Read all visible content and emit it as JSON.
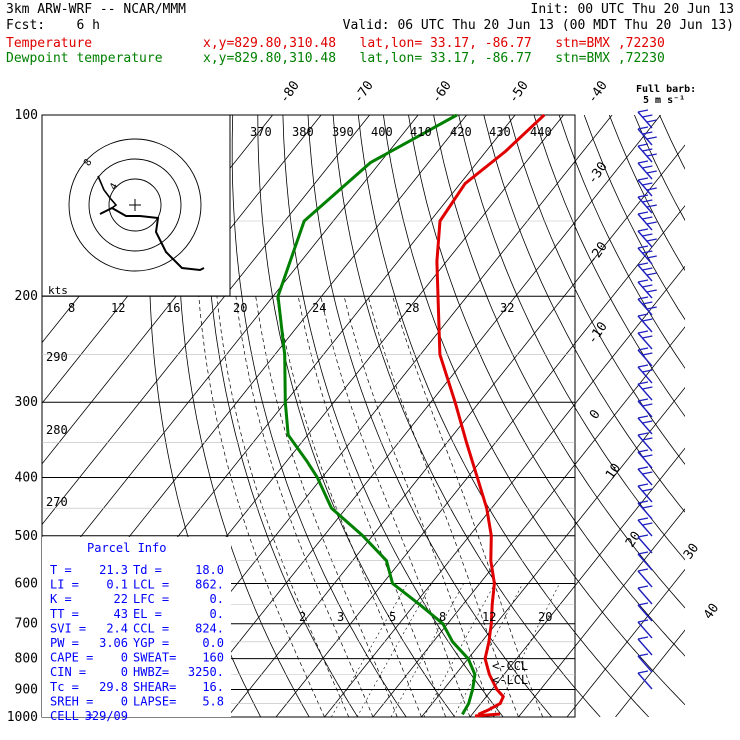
{
  "header": {
    "line1_left": "3km ARW-WRF -- NCAR/MMM",
    "line1_right": "Init: 00 UTC Thu 20 Jun 13",
    "line2_left": "Fcst:    6 h",
    "line2_right": "Valid: 06 UTC Thu 20 Jun 13 (00 MDT Thu 20 Jun 13)",
    "temp_label": "Temperature",
    "temp_info": "x,y=829.80,310.48   lat,lon= 33.17, -86.77   stn=BMX ,72230",
    "dew_label": "Dewpoint temperature",
    "dew_info": "x,y=829.80,310.48   lat,lon= 33.17, -86.77   stn=BMX ,72230",
    "full_barb": "Full barb:",
    "full_barb_units": "5 m s⁻¹"
  },
  "colors": {
    "temperature": "#e00000",
    "dewpoint": "#008000",
    "parcel_text": "#0000ff",
    "barbs": "#2020c0"
  },
  "chart_data": {
    "type": "skew-t",
    "pressure_axis_hPa": [
      100,
      200,
      300,
      400,
      500,
      600,
      700,
      800,
      900,
      1000
    ],
    "pressure_range_hPa": [
      1000,
      100
    ],
    "isotherm_labels_C": [
      -80,
      -70,
      -60,
      -50,
      -40,
      -30,
      -20,
      -10,
      0,
      10,
      20,
      30,
      40
    ],
    "theta_labels_K": [
      370,
      380,
      390,
      400,
      410,
      420,
      430,
      440
    ],
    "theta_side_labels_K": [
      290,
      280,
      270
    ],
    "mixing_ratio_labels": [
      "2",
      "3",
      "5",
      "8",
      "12",
      "20"
    ],
    "hodograph_speed_labels": [
      "8",
      "12",
      "16",
      "20",
      "24",
      "28",
      "32"
    ],
    "hodograph_units": "kts",
    "temperature_profile": [
      {
        "p": 100,
        "t": -64
      },
      {
        "p": 115,
        "t": -66
      },
      {
        "p": 130,
        "t": -69
      },
      {
        "p": 150,
        "t": -68
      },
      {
        "p": 175,
        "t": -62
      },
      {
        "p": 200,
        "t": -56
      },
      {
        "p": 250,
        "t": -46
      },
      {
        "p": 300,
        "t": -35
      },
      {
        "p": 350,
        "t": -26
      },
      {
        "p": 400,
        "t": -18
      },
      {
        "p": 450,
        "t": -11
      },
      {
        "p": 500,
        "t": -5.5
      },
      {
        "p": 550,
        "t": -1.5
      },
      {
        "p": 600,
        "t": 3
      },
      {
        "p": 650,
        "t": 6
      },
      {
        "p": 700,
        "t": 9
      },
      {
        "p": 750,
        "t": 11.5
      },
      {
        "p": 800,
        "t": 13.5
      },
      {
        "p": 850,
        "t": 17
      },
      {
        "p": 900,
        "t": 21
      },
      {
        "p": 925,
        "t": 23.5
      },
      {
        "p": 950,
        "t": 24
      },
      {
        "p": 975,
        "t": 22.5
      },
      {
        "p": 990,
        "t": 21.3
      }
    ],
    "dewpoint_profile": [
      {
        "p": 100,
        "t": -82
      },
      {
        "p": 120,
        "t": -92
      },
      {
        "p": 150,
        "t": -96
      },
      {
        "p": 200,
        "t": -89
      },
      {
        "p": 250,
        "t": -78
      },
      {
        "p": 300,
        "t": -70
      },
      {
        "p": 340,
        "t": -64
      },
      {
        "p": 375,
        "t": -56
      },
      {
        "p": 400,
        "t": -51
      },
      {
        "p": 450,
        "t": -43
      },
      {
        "p": 500,
        "t": -32
      },
      {
        "p": 550,
        "t": -23
      },
      {
        "p": 600,
        "t": -18
      },
      {
        "p": 650,
        "t": -9
      },
      {
        "p": 700,
        "t": -1
      },
      {
        "p": 750,
        "t": 4
      },
      {
        "p": 800,
        "t": 10
      },
      {
        "p": 850,
        "t": 14
      },
      {
        "p": 900,
        "t": 16
      },
      {
        "p": 950,
        "t": 17.5
      },
      {
        "p": 990,
        "t": 18
      }
    ],
    "annotations": [
      "<-CCL",
      "<-LCL"
    ]
  },
  "parcel_info": {
    "title": "Parcel Info",
    "rows": [
      [
        "T  =",
        "21.3",
        "Td =",
        "18.0"
      ],
      [
        "LI =",
        "0.1",
        "LCL =",
        "862."
      ],
      [
        "K  =",
        "22",
        "LFC =",
        "0."
      ],
      [
        "TT =",
        "43",
        "EL  =",
        "0."
      ],
      [
        "SVI =",
        "2.4",
        "CCL =",
        "824."
      ],
      [
        "PW =",
        "3.06",
        "YGP =",
        "0.0"
      ],
      [
        "CAPE =",
        "0",
        "SWEAT=",
        "160"
      ],
      [
        "CIN =",
        "0",
        "HWBZ=",
        "3250."
      ],
      [
        "Tc =",
        "29.8",
        "SHEAR=",
        "16."
      ],
      [
        "SREH =",
        "0",
        "LAPSE=",
        "5.8"
      ],
      [
        "CELL =",
        "329/09",
        "",
        ""
      ]
    ]
  }
}
